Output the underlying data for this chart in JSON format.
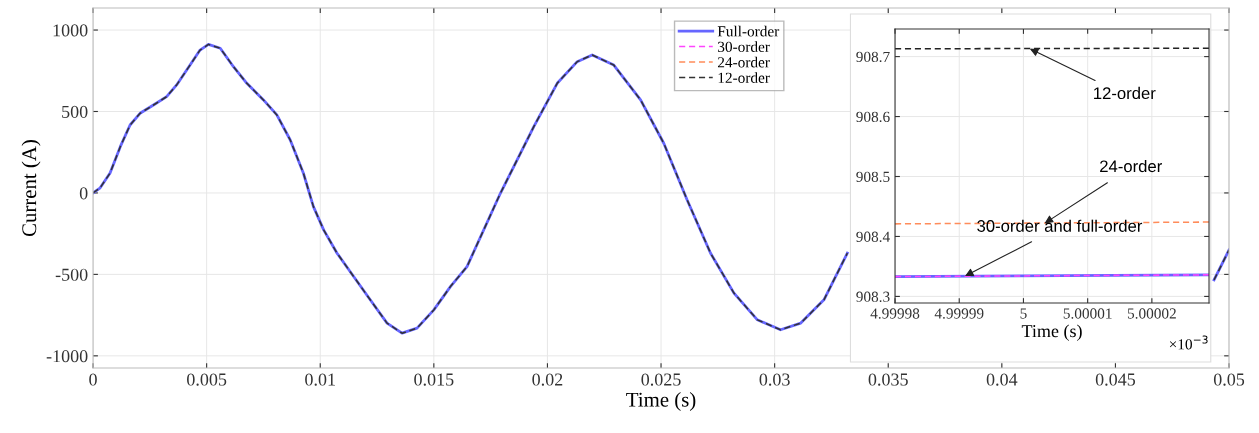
{
  "chart_data": [
    {
      "type": "line",
      "xlabel": "Time (s)",
      "ylabel": "Current (A)",
      "x": [
        0,
        0.0003,
        0.00075,
        0.0012,
        0.00163,
        0.00207,
        0.00266,
        0.00324,
        0.00368,
        0.00427,
        0.00471,
        0.00508,
        0.0056,
        0.00618,
        0.00677,
        0.0075,
        0.00809,
        0.00868,
        0.00926,
        0.0097,
        0.01015,
        0.01074,
        0.01147,
        0.0122,
        0.01294,
        0.0136,
        0.01426,
        0.015,
        0.01573,
        0.01646,
        0.01793,
        0.0194,
        0.02043,
        0.02131,
        0.02197,
        0.02292,
        0.0241,
        0.02512,
        0.02615,
        0.02718,
        0.02821,
        0.02924,
        0.03026,
        0.03115,
        0.03217,
        0.0332,
        0.04,
        0.04934,
        0.05
      ],
      "series": [
        {
          "name": "Full-order",
          "color": "#6666ff",
          "line_style": "solid",
          "values": [
            0,
            29,
            122,
            284,
            417,
            489,
            540,
            591,
            663,
            785,
            877,
            912,
            888,
            775,
            673,
            571,
            479,
            325,
            121,
            -84,
            -227,
            -370,
            -513,
            -656,
            -799,
            -861,
            -830,
            -718,
            -575,
            -452,
            -2,
            407,
            673,
            806,
            847,
            785,
            571,
            305,
            -43,
            -370,
            -615,
            -779,
            -840,
            -799,
            -656,
            -370,
            null,
            -534,
            -350
          ]
        },
        {
          "name": "30-order",
          "color": "#ff44ff",
          "line_style": "dashed",
          "values": [
            null,
            null,
            null,
            null,
            null,
            null,
            null,
            null,
            null,
            null,
            null,
            null,
            null,
            null,
            null,
            null,
            null,
            null,
            null,
            null,
            null,
            null,
            null,
            null,
            null,
            null,
            null,
            null,
            null,
            null,
            null,
            null,
            null,
            null,
            null,
            null,
            null,
            null,
            null,
            null,
            null,
            null,
            null,
            null,
            null,
            null,
            null,
            null,
            null
          ]
        },
        {
          "name": "24-order",
          "color": "#ff8c5a",
          "line_style": "dashed",
          "values": [
            null,
            null,
            null,
            null,
            null,
            null,
            null,
            null,
            null,
            null,
            null,
            null,
            null,
            null,
            null,
            null,
            null,
            null,
            null,
            null,
            null,
            null,
            null,
            null,
            null,
            null,
            null,
            null,
            null,
            null,
            null,
            null,
            null,
            null,
            null,
            null,
            null,
            null,
            null,
            null,
            null,
            null,
            null,
            null,
            null,
            null,
            null,
            null,
            null
          ]
        },
        {
          "name": "12-order",
          "color": "#333333",
          "line_style": "dashed",
          "values": [
            0,
            29,
            122,
            284,
            417,
            489,
            540,
            591,
            663,
            785,
            877,
            912,
            888,
            775,
            673,
            571,
            479,
            325,
            121,
            -84,
            -227,
            -370,
            -513,
            -656,
            -799,
            -861,
            -830,
            -718,
            -575,
            -452,
            -2,
            407,
            673,
            806,
            847,
            785,
            571,
            305,
            -43,
            -370,
            -615,
            -779,
            -840,
            -799,
            -656,
            -370,
            null,
            -534,
            -350
          ]
        }
      ],
      "xlim": [
        0,
        0.05
      ],
      "xticks": [
        0,
        0.005,
        0.01,
        0.015,
        0.02,
        0.025,
        0.03,
        0.035,
        0.04,
        0.045,
        0.05
      ],
      "ylim": [
        -1075,
        1135
      ],
      "yticks": [
        -1000,
        -500,
        0,
        500,
        1000
      ],
      "grid": true,
      "legend": "top"
    },
    {
      "type": "line",
      "xlabel": "Time (s)",
      "x": [
        4.99998,
        5.0000289
      ],
      "series": [
        {
          "color": "#6666ff",
          "line_style": "solid",
          "values": [
            908.333,
            908.336
          ]
        },
        {
          "color": "#ff44ff",
          "line_style": "dashed",
          "values": [
            908.333,
            908.336
          ]
        },
        {
          "color": "#ff8c5a",
          "line_style": "dashed",
          "values": [
            908.421,
            908.424
          ]
        },
        {
          "color": "#222222",
          "line_style": "dashed",
          "values": [
            908.713,
            908.714
          ]
        }
      ],
      "xlim": [
        4.99998,
        5.0000289
      ],
      "xticks": [
        4.99998,
        4.99999,
        5,
        5.00001,
        5.00002
      ],
      "ylim": [
        908.289,
        908.746
      ],
      "yticks": [
        908.3,
        908.4,
        908.5,
        908.6,
        908.7
      ],
      "grid": true,
      "annotations": [
        {
          "text": "12-order",
          "x": 5.000001,
          "y": 908.713
        },
        {
          "text": "24-order",
          "x": 5.0000033,
          "y": 908.422
        },
        {
          "text": "30-order and full-order",
          "x": 4.9999909,
          "y": 908.334
        },
        "×10$^{−3}$"
      ]
    }
  ]
}
